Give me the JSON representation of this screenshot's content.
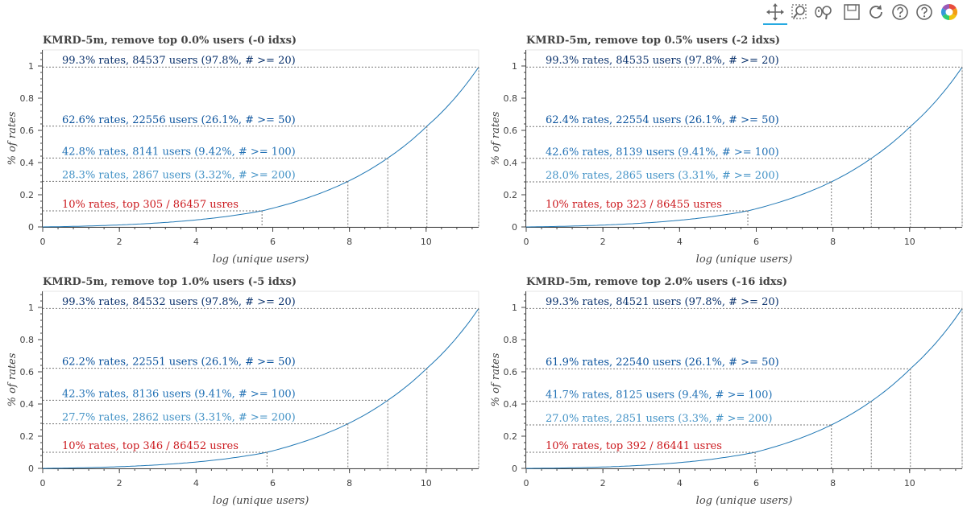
{
  "toolbar": {
    "tools": [
      {
        "name": "pan-icon",
        "title": "Pan",
        "active": true
      },
      {
        "name": "box-zoom-icon",
        "title": "Box Zoom",
        "active": false
      },
      {
        "name": "wheel-zoom-icon",
        "title": "Wheel Zoom",
        "active": false
      },
      {
        "name": "save-icon",
        "title": "Save",
        "active": false
      },
      {
        "name": "reset-icon",
        "title": "Reset",
        "active": false
      },
      {
        "name": "help-icon",
        "title": "Help",
        "active": false
      },
      {
        "name": "help-icon",
        "title": "Help",
        "active": false
      },
      {
        "name": "bokeh-logo-icon",
        "title": "Bokeh",
        "active": false
      }
    ],
    "accent_color": "#26aae1"
  },
  "chart_data": [
    {
      "type": "line",
      "title": "KMRD-5m, remove top 0.0% users (-0 idxs)",
      "xlabel": "log (unique users)",
      "ylabel": "% of rates",
      "xlim": [
        0,
        11.37
      ],
      "ylim": [
        0,
        1.1
      ],
      "xticks": [
        0,
        2,
        4,
        6,
        8,
        10
      ],
      "yticks": [
        0,
        0.2,
        0.4,
        0.6,
        0.8,
        1
      ],
      "xtick_labels": [
        "0",
        "2",
        "4",
        "6",
        "8",
        "10"
      ],
      "ytick_labels": [
        "0",
        "0.2",
        "0.4",
        "0.6",
        "0.8",
        "1"
      ],
      "line_color": "#1f77b4",
      "curve_end": [
        11.37,
        0.993
      ],
      "annotations": [
        {
          "text": "99.3% rates, 84537 users (97.8%, # >= 20)",
          "x": 11.37,
          "y": 0.993,
          "color": "#08306b"
        },
        {
          "text": "62.6% rates, 22556 users (26.1%, # >= 50)",
          "x": 10.02,
          "y": 0.626,
          "color": "#08519c"
        },
        {
          "text": "42.8% rates, 8141 users (9.42%, # >= 100)",
          "x": 9.0,
          "y": 0.428,
          "color": "#2171b5"
        },
        {
          "text": "28.3% rates, 2867 users (3.32%, # >= 200)",
          "x": 7.96,
          "y": 0.283,
          "color": "#4292c6"
        },
        {
          "text": "10% rates, top 305 / 86457 usres",
          "x": 5.72,
          "y": 0.1,
          "color": "#cb181d"
        }
      ]
    },
    {
      "type": "line",
      "title": "KMRD-5m, remove top 0.5% users (-2 idxs)",
      "xlabel": "log (unique users)",
      "ylabel": "% of rates",
      "xlim": [
        0,
        11.37
      ],
      "ylim": [
        0,
        1.1
      ],
      "xticks": [
        0,
        2,
        4,
        6,
        8,
        10
      ],
      "yticks": [
        0,
        0.2,
        0.4,
        0.6,
        0.8,
        1
      ],
      "xtick_labels": [
        "0",
        "2",
        "4",
        "6",
        "8",
        "10"
      ],
      "ytick_labels": [
        "0",
        "0.2",
        "0.4",
        "0.6",
        "0.8",
        "1"
      ],
      "line_color": "#1f77b4",
      "curve_end": [
        11.37,
        0.993
      ],
      "annotations": [
        {
          "text": "99.3% rates, 84535 users (97.8%, # >= 20)",
          "x": 11.37,
          "y": 0.993,
          "color": "#08306b"
        },
        {
          "text": "62.4% rates, 22554 users (26.1%, # >= 50)",
          "x": 10.02,
          "y": 0.624,
          "color": "#08519c"
        },
        {
          "text": "42.6% rates, 8139 users (9.41%, # >= 100)",
          "x": 9.0,
          "y": 0.426,
          "color": "#2171b5"
        },
        {
          "text": "28.0% rates, 2865 users (3.31%, # >= 200)",
          "x": 7.96,
          "y": 0.28,
          "color": "#4292c6"
        },
        {
          "text": "10% rates, top 323 / 86455 usres",
          "x": 5.78,
          "y": 0.1,
          "color": "#cb181d"
        }
      ]
    },
    {
      "type": "line",
      "title": "KMRD-5m, remove top 1.0% users (-5 idxs)",
      "xlabel": "log (unique users)",
      "ylabel": "% of rates",
      "xlim": [
        0,
        11.37
      ],
      "ylim": [
        0,
        1.1
      ],
      "xticks": [
        0,
        2,
        4,
        6,
        8,
        10
      ],
      "yticks": [
        0,
        0.2,
        0.4,
        0.6,
        0.8,
        1
      ],
      "xtick_labels": [
        "0",
        "2",
        "4",
        "6",
        "8",
        "10"
      ],
      "ytick_labels": [
        "0",
        "0.2",
        "0.4",
        "0.6",
        "0.8",
        "1"
      ],
      "line_color": "#1f77b4",
      "curve_end": [
        11.37,
        0.993
      ],
      "annotations": [
        {
          "text": "99.3% rates, 84532 users (97.8%, # >= 20)",
          "x": 11.37,
          "y": 0.993,
          "color": "#08306b"
        },
        {
          "text": "62.2% rates, 22551 users (26.1%, # >= 50)",
          "x": 10.02,
          "y": 0.622,
          "color": "#08519c"
        },
        {
          "text": "42.3% rates, 8136 users (9.41%, # >= 100)",
          "x": 9.0,
          "y": 0.423,
          "color": "#2171b5"
        },
        {
          "text": "27.7% rates, 2862 users (3.31%, # >= 200)",
          "x": 7.96,
          "y": 0.277,
          "color": "#4292c6"
        },
        {
          "text": "10% rates, top 346 / 86452 usres",
          "x": 5.85,
          "y": 0.1,
          "color": "#cb181d"
        }
      ]
    },
    {
      "type": "line",
      "title": "KMRD-5m, remove top 2.0% users (-16 idxs)",
      "xlabel": "log (unique users)",
      "ylabel": "% of rates",
      "xlim": [
        0,
        11.37
      ],
      "ylim": [
        0,
        1.1
      ],
      "xticks": [
        0,
        2,
        4,
        6,
        8,
        10
      ],
      "yticks": [
        0,
        0.2,
        0.4,
        0.6,
        0.8,
        1
      ],
      "xtick_labels": [
        "0",
        "2",
        "4",
        "6",
        "8",
        "10"
      ],
      "ytick_labels": [
        "0",
        "0.2",
        "0.4",
        "0.6",
        "0.8",
        "1"
      ],
      "line_color": "#1f77b4",
      "curve_end": [
        11.37,
        0.993
      ],
      "annotations": [
        {
          "text": "99.3% rates, 84521 users (97.8%, # >= 20)",
          "x": 11.37,
          "y": 0.993,
          "color": "#08306b"
        },
        {
          "text": "61.9% rates, 22540 users (26.1%, # >= 50)",
          "x": 10.02,
          "y": 0.619,
          "color": "#08519c"
        },
        {
          "text": "41.7% rates, 8125 users (9.4%, # >= 100)",
          "x": 9.0,
          "y": 0.417,
          "color": "#2171b5"
        },
        {
          "text": "27.0% rates, 2851 users (3.3%, # >= 200)",
          "x": 7.96,
          "y": 0.27,
          "color": "#4292c6"
        },
        {
          "text": "10% rates, top 392 / 86441 usres",
          "x": 5.97,
          "y": 0.1,
          "color": "#cb181d"
        }
      ]
    }
  ]
}
